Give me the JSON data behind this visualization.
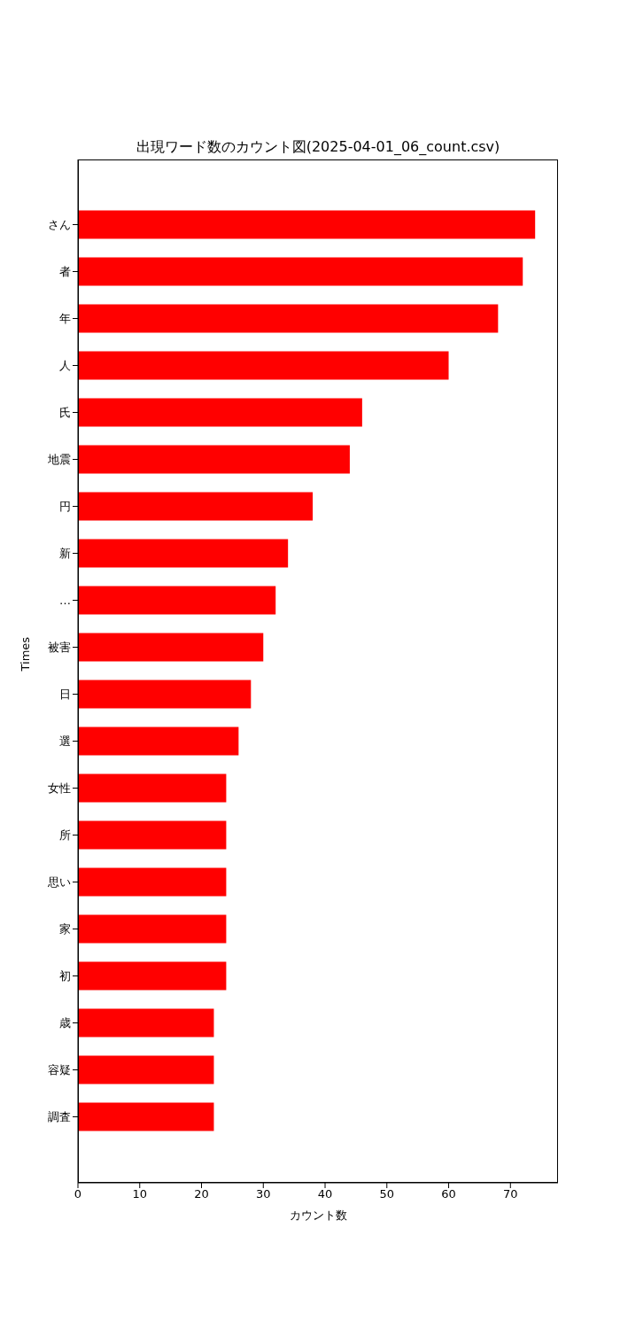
{
  "chart_data": {
    "type": "bar",
    "orientation": "horizontal",
    "title": "出現ワード数のカウント図(2025-04-01_06_count.csv)",
    "xlabel": "カウント数",
    "ylabel": "Times",
    "categories": [
      "さん",
      "者",
      "年",
      "人",
      "氏",
      "地震",
      "円",
      "新",
      "…",
      "被害",
      "日",
      "選",
      "女性",
      "所",
      "思い",
      "家",
      "初",
      "歳",
      "容疑",
      "調査"
    ],
    "values": [
      74,
      72,
      68,
      60,
      46,
      44,
      38,
      34,
      32,
      30,
      28,
      26,
      24,
      24,
      24,
      24,
      24,
      22,
      22,
      22
    ],
    "color": "#ff0000",
    "xlim": [
      0,
      77.7
    ],
    "xticks": [
      0,
      10,
      20,
      30,
      40,
      50,
      60,
      70
    ],
    "grid": false,
    "legend": false
  }
}
